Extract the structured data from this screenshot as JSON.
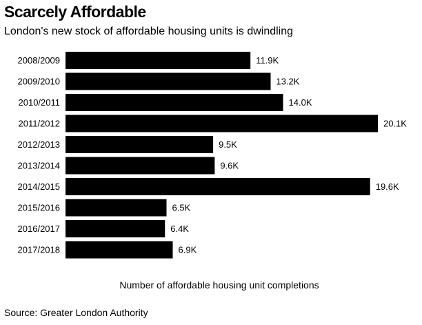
{
  "header": {
    "title": "Scarcely Affordable",
    "subtitle": "London's new stock of affordable housing units is dwindling"
  },
  "footer": {
    "source": "Source: Greater London Authority"
  },
  "chart_data": {
    "type": "bar",
    "orientation": "horizontal",
    "title": "Scarcely Affordable",
    "subtitle": "London's new stock of affordable housing units is dwindling",
    "xlabel": "Number of affordable housing unit completions",
    "ylabel": "",
    "categories": [
      "2008/2009",
      "2009/2010",
      "2010/2011",
      "2011/2012",
      "2012/2013",
      "2013/2014",
      "2014/2015",
      "2015/2016",
      "2016/2017",
      "2017/2018"
    ],
    "values": [
      11.9,
      13.2,
      14.0,
      20.1,
      9.5,
      9.6,
      19.6,
      6.5,
      6.4,
      6.9
    ],
    "value_labels": [
      "11.9K",
      "13.2K",
      "14.0K",
      "20.1K",
      "9.5K",
      "9.6K",
      "19.6K",
      "6.5K",
      "6.4K",
      "6.9K"
    ],
    "unit": "thousand units",
    "xlim": [
      0,
      20.1
    ],
    "grid": false,
    "legend": "none",
    "bar_color": "#000000"
  }
}
